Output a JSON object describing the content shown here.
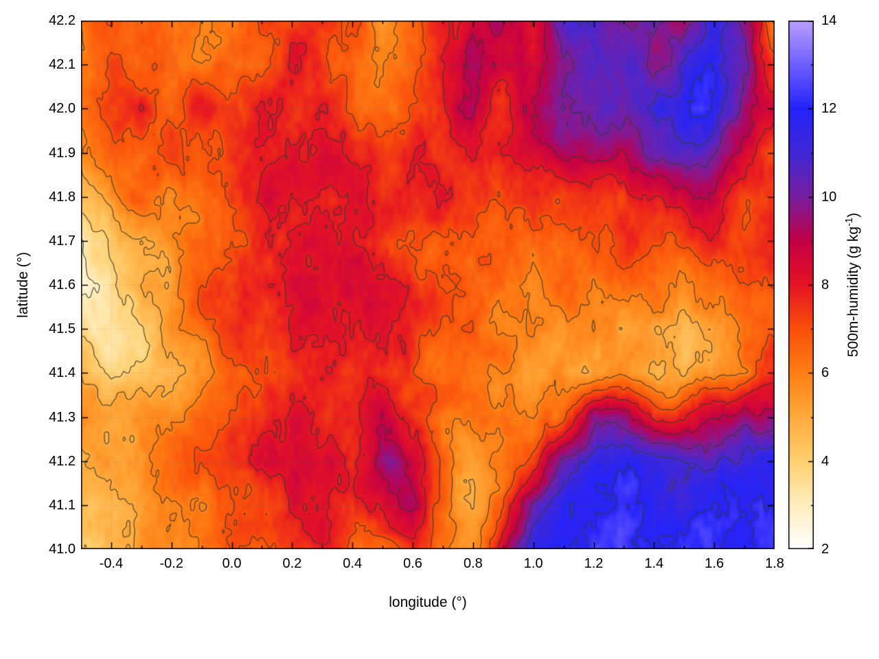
{
  "labels": {
    "xlabel": "longitude (°)",
    "ylabel": "latitude (°)",
    "colorbar_main": "500m-humidity (g kg",
    "colorbar_sup": "-1",
    "colorbar_end": ")"
  },
  "chart_data": {
    "type": "heatmap",
    "title": "",
    "xlabel": "longitude (°)",
    "ylabel": "latitude (°)",
    "colorbar_label": "500m-humidity (g kg⁻¹)",
    "xlim": [
      -0.5,
      1.8
    ],
    "ylim": [
      41.0,
      42.2
    ],
    "colorbar_range": [
      2,
      14
    ],
    "grid_on": true,
    "legend": "none",
    "xticks": [
      -0.4,
      -0.2,
      0.0,
      0.2,
      0.4,
      0.6,
      0.8,
      1.0,
      1.2,
      1.4,
      1.6,
      1.8
    ],
    "x_tick_labels": [
      "-0.4",
      "-0.2",
      "0.0",
      "0.2",
      "0.4",
      "0.6",
      "0.8",
      "1.0",
      "1.2",
      "1.4",
      "1.6",
      "1.8"
    ],
    "xticks_minor": [
      -0.5,
      -0.3,
      -0.1,
      0.1,
      0.3,
      0.5,
      0.7,
      0.9,
      1.1,
      1.3,
      1.5,
      1.7
    ],
    "yticks": [
      41.0,
      41.1,
      41.2,
      41.3,
      41.4,
      41.5,
      41.6,
      41.7,
      41.8,
      41.9,
      42.0,
      42.1,
      42.2
    ],
    "y_tick_labels": [
      "41.0",
      "41.1",
      "41.2",
      "41.3",
      "41.4",
      "41.5",
      "41.6",
      "41.7",
      "41.8",
      "41.9",
      "42.0",
      "42.1",
      "42.2"
    ],
    "cb_ticks": [
      2,
      4,
      6,
      8,
      10,
      12,
      14
    ],
    "cb_tick_labels": [
      "2",
      "4",
      "6",
      "8",
      "10",
      "12",
      "14"
    ],
    "cb_ticks_minor": [
      3,
      5,
      7,
      9,
      11,
      13
    ],
    "contour_levels": [
      3,
      4,
      5,
      6,
      7,
      8,
      9,
      10,
      11,
      12
    ],
    "contour_color": "rgba(55,55,48,0.85)",
    "colormap_stops": [
      [
        2,
        "#ffffff"
      ],
      [
        3,
        "#ffeebe"
      ],
      [
        4,
        "#ffd070"
      ],
      [
        5,
        "#ffaa3c"
      ],
      [
        6,
        "#ff8014"
      ],
      [
        7,
        "#fa500a"
      ],
      [
        8,
        "#e61423"
      ],
      [
        9,
        "#c30046"
      ],
      [
        10,
        "#781ea0"
      ],
      [
        11,
        "#4128d7"
      ],
      [
        12,
        "#2323fa"
      ],
      [
        13,
        "#6e5fff"
      ],
      [
        14,
        "#b9a0ff"
      ]
    ],
    "grid": {
      "units": "g kg^-1",
      "lon": [
        -0.5,
        -0.4,
        -0.3,
        -0.2,
        -0.1,
        0.0,
        0.1,
        0.2,
        0.3,
        0.4,
        0.5,
        0.6,
        0.7,
        0.8,
        0.9,
        1.0,
        1.1,
        1.2,
        1.3,
        1.4,
        1.5,
        1.6,
        1.7,
        1.8
      ],
      "lat": [
        42.2,
        42.1,
        42.0,
        41.9,
        41.8,
        41.7,
        41.6,
        41.5,
        41.4,
        41.3,
        41.2,
        41.1,
        41.0
      ],
      "values": [
        [
          6.5,
          7.0,
          7.0,
          6.5,
          6.0,
          6.0,
          7.0,
          7.5,
          7.5,
          7.0,
          5.5,
          6.5,
          7.5,
          8.5,
          9.0,
          8.5,
          11.0,
          11.5,
          10.0,
          10.5,
          9.5,
          11.5,
          10.0,
          6.0
        ],
        [
          6.5,
          7.5,
          7.0,
          6.5,
          6.5,
          6.5,
          7.0,
          8.0,
          7.5,
          7.0,
          6.0,
          7.0,
          8.0,
          9.0,
          8.5,
          8.5,
          10.0,
          11.0,
          10.5,
          9.5,
          11.0,
          12.0,
          10.5,
          7.5
        ],
        [
          6.0,
          7.0,
          7.5,
          7.0,
          7.5,
          7.0,
          7.5,
          8.0,
          7.5,
          7.0,
          6.5,
          7.5,
          8.0,
          8.5,
          8.0,
          9.5,
          10.5,
          10.0,
          10.5,
          11.5,
          12.0,
          11.5,
          9.5,
          8.0
        ],
        [
          5.5,
          6.5,
          7.0,
          7.5,
          6.5,
          7.0,
          8.0,
          8.0,
          8.0,
          7.5,
          7.5,
          8.0,
          7.5,
          8.0,
          8.5,
          9.0,
          9.5,
          9.5,
          9.0,
          10.0,
          10.5,
          10.0,
          8.5,
          7.5
        ],
        [
          4.5,
          5.5,
          6.5,
          6.0,
          6.5,
          7.5,
          8.0,
          8.5,
          8.5,
          8.0,
          7.5,
          7.5,
          8.0,
          7.5,
          7.0,
          7.0,
          7.5,
          8.0,
          7.5,
          8.0,
          8.5,
          8.5,
          7.5,
          7.5
        ],
        [
          3.0,
          4.0,
          5.0,
          6.0,
          6.5,
          7.0,
          7.5,
          8.0,
          8.5,
          8.0,
          7.5,
          7.0,
          7.0,
          7.0,
          6.5,
          6.5,
          7.0,
          7.0,
          7.5,
          7.0,
          7.0,
          7.5,
          7.0,
          7.5
        ],
        [
          3.0,
          3.5,
          4.5,
          5.5,
          7.0,
          7.0,
          7.5,
          8.0,
          8.5,
          8.5,
          8.0,
          7.5,
          7.0,
          6.5,
          6.5,
          6.0,
          6.5,
          6.5,
          7.0,
          6.5,
          5.5,
          6.0,
          7.0,
          6.5
        ],
        [
          4.0,
          3.5,
          4.0,
          5.5,
          6.5,
          7.5,
          7.0,
          7.5,
          8.0,
          8.0,
          8.0,
          7.5,
          7.0,
          6.5,
          6.0,
          6.0,
          5.5,
          6.0,
          5.5,
          5.0,
          4.5,
          5.5,
          6.5,
          7.0
        ],
        [
          5.0,
          4.0,
          4.5,
          5.0,
          6.0,
          6.5,
          7.0,
          7.0,
          7.5,
          7.5,
          7.5,
          7.0,
          6.5,
          6.0,
          6.0,
          5.5,
          5.5,
          5.0,
          5.5,
          5.0,
          5.0,
          5.5,
          6.5,
          8.0
        ],
        [
          5.5,
          5.0,
          5.5,
          6.0,
          6.5,
          7.0,
          7.5,
          8.0,
          7.5,
          7.5,
          9.0,
          7.5,
          6.0,
          6.5,
          6.5,
          6.0,
          6.5,
          9.5,
          9.5,
          8.0,
          7.5,
          8.5,
          9.5,
          9.5
        ],
        [
          5.0,
          5.5,
          6.0,
          6.5,
          7.0,
          7.5,
          8.0,
          8.5,
          8.5,
          8.0,
          10.0,
          8.5,
          6.5,
          5.5,
          6.0,
          7.5,
          10.5,
          11.5,
          12.0,
          11.5,
          11.0,
          11.0,
          11.0,
          11.5
        ],
        [
          4.5,
          5.0,
          5.5,
          6.0,
          6.5,
          7.0,
          7.5,
          8.0,
          8.5,
          7.5,
          8.0,
          9.0,
          6.5,
          5.5,
          7.0,
          10.5,
          12.0,
          12.0,
          12.0,
          12.0,
          11.5,
          12.0,
          12.0,
          12.0
        ],
        [
          4.5,
          5.0,
          5.5,
          6.0,
          6.0,
          6.5,
          7.0,
          7.5,
          8.0,
          7.0,
          6.5,
          7.5,
          5.5,
          5.0,
          8.5,
          11.5,
          12.0,
          12.0,
          12.5,
          12.0,
          12.0,
          12.0,
          12.0,
          12.5
        ]
      ]
    }
  }
}
